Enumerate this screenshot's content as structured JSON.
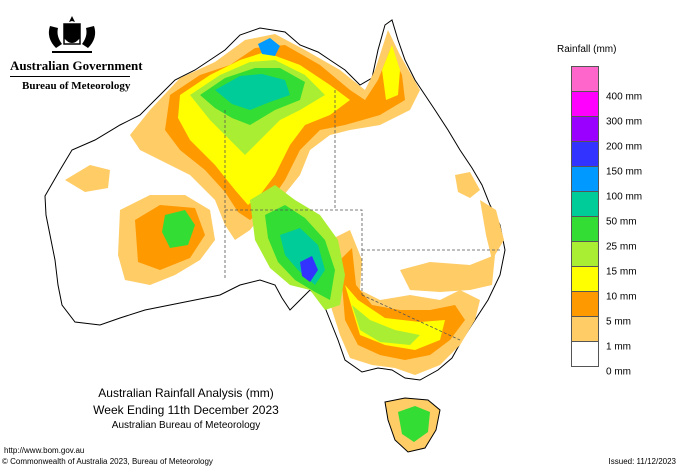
{
  "header": {
    "government": "Australian Government",
    "agency": "Bureau of Meteorology"
  },
  "legend": {
    "title": "Rainfall (mm)",
    "items": [
      {
        "label": "400 mm",
        "color": "#ff66cc"
      },
      {
        "label": "300 mm",
        "color": "#ff00ff"
      },
      {
        "label": "200 mm",
        "color": "#9900ff"
      },
      {
        "label": "150 mm",
        "color": "#3333ff"
      },
      {
        "label": "100 mm",
        "color": "#0099ff"
      },
      {
        "label": "50 mm",
        "color": "#00cc99"
      },
      {
        "label": "25 mm",
        "color": "#33dd33"
      },
      {
        "label": "15 mm",
        "color": "#aaee33"
      },
      {
        "label": "10 mm",
        "color": "#ffff00"
      },
      {
        "label": "5 mm",
        "color": "#ff9900"
      },
      {
        "label": "1 mm",
        "color": "#ffcc66"
      },
      {
        "label": "0 mm",
        "color": "#ffffff"
      }
    ]
  },
  "caption": {
    "line1": "Australian Rainfall Analysis (mm)",
    "line2": "Week Ending 11th December 2023",
    "line3": "Australian Bureau of Meteorology"
  },
  "footer": {
    "url": "http://www.bom.gov.au",
    "copyright": "© Commonwealth of Australia 2023, Bureau of Meteorology",
    "issued": "Issued: 11/12/2023"
  }
}
